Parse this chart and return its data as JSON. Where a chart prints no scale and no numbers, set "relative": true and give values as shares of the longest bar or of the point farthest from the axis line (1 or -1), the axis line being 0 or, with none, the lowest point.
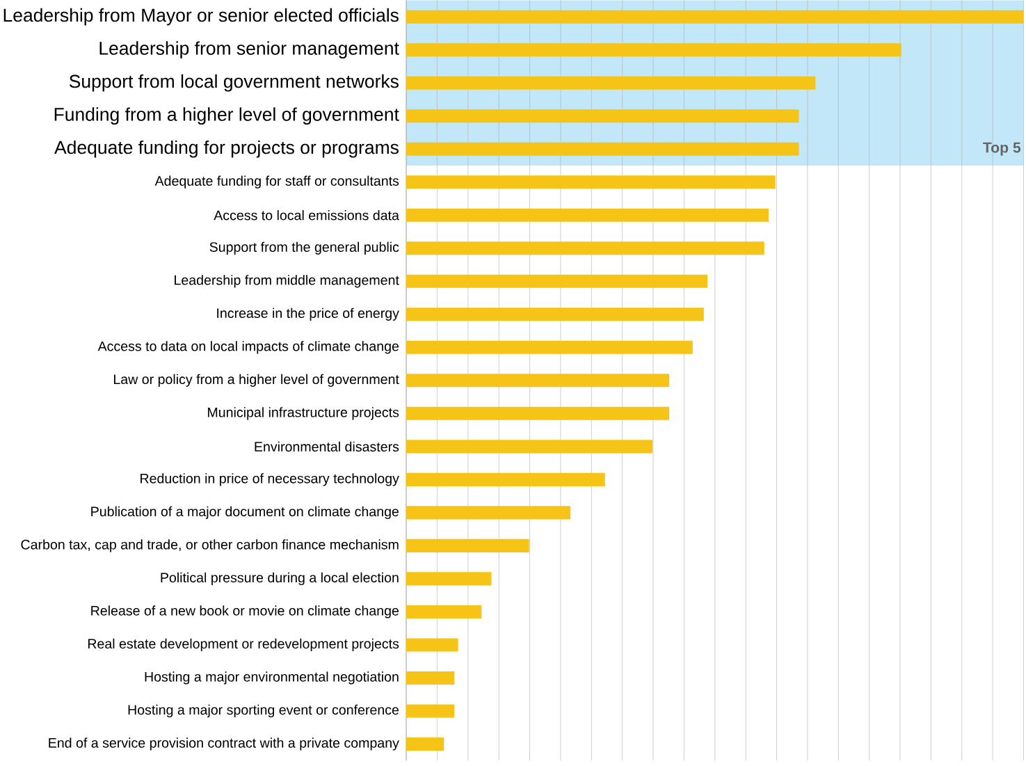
{
  "chart_data": {
    "type": "bar",
    "orientation": "horizontal",
    "relative": true,
    "grid": "x",
    "color": "#f6c416",
    "categories": [
      "Leadership from Mayor or senior elected officials",
      "Leadership from senior management",
      "Support from local government networks",
      "Funding from a higher level of government",
      "Adequate funding for projects or programs",
      "Adequate funding for staff or consultants",
      "Access to local emissions data",
      "Support from the general public",
      "Leadership from middle management",
      "Increase in the price of energy",
      "Access to data on local impacts of climate change",
      "Law or policy from a higher level of government",
      "Municipal infrastructure projects",
      "Environmental disasters",
      "Reduction in price of necessary technology",
      "Publication of a major document on climate change",
      "Carbon tax, cap and trade, or other carbon finance mechanism",
      "Political pressure during a local election",
      "Release of a new book or movie on climate change",
      "Real estate development or redevelopment projects",
      "Hosting a major environmental negotiation",
      "Hosting a major sporting event or conference",
      "End of a service provision contract with a private company"
    ],
    "values": [
      1,
      0.802,
      0.663,
      0.636,
      0.636,
      0.598,
      0.587,
      0.58,
      0.488,
      0.482,
      0.464,
      0.426,
      0.426,
      0.399,
      0.322,
      0.266,
      0.199,
      0.138,
      0.122,
      0.084,
      0.078,
      0.078,
      0.061
    ],
    "bands": [
      {
        "axis": "y",
        "from": "Leadership from Mayor or senior elected officials",
        "to": "Adequate funding for projects or programs",
        "label": "Top 5",
        "color": "#c2e7f8"
      }
    ]
  }
}
